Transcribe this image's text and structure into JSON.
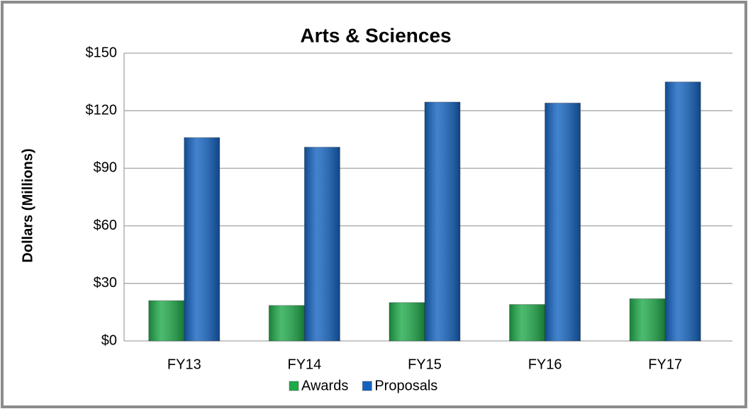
{
  "chart_data": {
    "type": "bar",
    "title": "Arts & Sciences",
    "y_label": "Dollars (Millions)",
    "categories": [
      "FY13",
      "FY14",
      "FY15",
      "FY16",
      "FY17"
    ],
    "series": [
      {
        "name": "Awards",
        "color": "#1faa4a",
        "values": [
          21,
          18.5,
          20,
          19,
          22
        ]
      },
      {
        "name": "Proposals",
        "color": "#1463c0",
        "values": [
          106,
          101,
          124.5,
          124,
          135
        ]
      }
    ],
    "ylim": [
      0,
      150
    ],
    "yticks": [
      {
        "value": 0,
        "label": "$0"
      },
      {
        "value": 30,
        "label": "$30"
      },
      {
        "value": 60,
        "label": "$60"
      },
      {
        "value": 90,
        "label": "$90"
      },
      {
        "value": 120,
        "label": "$120"
      },
      {
        "value": 150,
        "label": "$150"
      }
    ],
    "grid": true,
    "legend": "bottom"
  }
}
